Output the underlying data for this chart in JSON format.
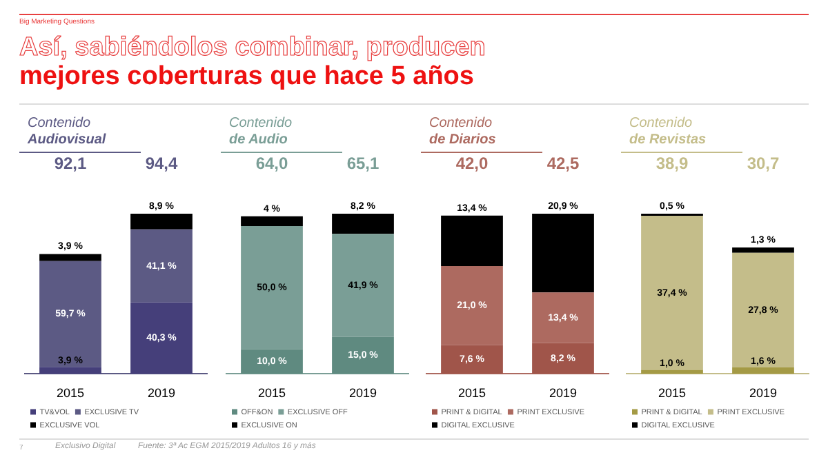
{
  "chart_data": [
    {
      "type": "bar",
      "title": "Contenido\nAudiovisual",
      "categories": [
        "2015",
        "2019"
      ],
      "stacked": true,
      "legend": "bottom",
      "annotations": [
        "Big Marketing Questions",
        "Así, sabiéndolos combinar, producen",
        "mejores coberturas que hace 5 años",
        "7",
        "Exclusivo Digital",
        "Fuente: 3ª Ac EGM 2015/2019 Adultos 16 y más",
        "92,1",
        "94,4"
      ],
      "series": [
        {
          "name": "TV&VOL",
          "color": "#453f7a",
          "values": [
            3.9,
            40.3
          ],
          "value_labels": [
            "3,9 %",
            "40,3 %"
          ]
        },
        {
          "name": "EXCLUSIVE TV",
          "color": "#5c5a84",
          "values": [
            59.7,
            41.1
          ],
          "value_labels": [
            "59,7 %",
            "41,1 %"
          ]
        },
        {
          "name": "EXCLUSIVE VOL",
          "color": "#000000",
          "values": [
            3.9,
            8.9
          ],
          "value_labels": [
            "3,9 %",
            "8,9 %"
          ]
        }
      ]
    },
    {
      "type": "bar",
      "title": "Contenido\nde Audio",
      "categories": [
        "2015",
        "2019"
      ],
      "stacked": true,
      "legend": "bottom",
      "annotations": [
        "64,0",
        "65,1"
      ],
      "series": [
        {
          "name": "OFF&ON",
          "color": "#5f8a80",
          "values": [
            10.0,
            15.0
          ],
          "value_labels": [
            "10,0 %",
            "15,0 %"
          ]
        },
        {
          "name": "EXCLUSIVE OFF",
          "color": "#7a9e96",
          "values": [
            50.0,
            41.9
          ],
          "value_labels": [
            "50,0 %",
            "41,9 %"
          ]
        },
        {
          "name": "EXCLUSIVE ON",
          "color": "#000000",
          "values": [
            4,
            8.2
          ],
          "value_labels": [
            "4 %",
            "8,2 %"
          ]
        }
      ]
    },
    {
      "type": "bar",
      "title": "Contenido\nde Diarios",
      "categories": [
        "2015",
        "2019"
      ],
      "stacked": true,
      "legend": "bottom",
      "annotations": [
        "42,0",
        "42,5"
      ],
      "series": [
        {
          "name": "PRINT & DIGITAL",
          "color": "#a0554a",
          "values": [
            7.6,
            8.2
          ],
          "value_labels": [
            "7,6 %",
            "8,2 %"
          ]
        },
        {
          "name": "PRINT EXCLUSIVE",
          "color": "#ad6a60",
          "values": [
            21.0,
            13.4
          ],
          "value_labels": [
            "21,0 %",
            "13,4 %"
          ]
        },
        {
          "name": "DIGITAL EXCLUSIVE",
          "color": "#000000",
          "values": [
            13.4,
            20.9
          ],
          "value_labels": [
            "13,4 %",
            "20,9 %"
          ]
        }
      ]
    },
    {
      "type": "bar",
      "title": "Contenido\nde Revistas",
      "categories": [
        "2015",
        "2019"
      ],
      "stacked": true,
      "legend": "bottom",
      "annotations": [
        "38,9",
        "30,7"
      ],
      "series": [
        {
          "name": "PRINT & DIGITAL",
          "color": "#a49a45",
          "values": [
            1.0,
            1.6
          ],
          "value_labels": [
            "1,0 %",
            "1,6 %"
          ]
        },
        {
          "name": "PRINT EXCLUSIVE",
          "color": "#c4bd8a",
          "values": [
            37.4,
            27.8
          ],
          "value_labels": [
            "37,4 %",
            "27,8 %"
          ]
        },
        {
          "name": "DIGITAL EXCLUSIVE",
          "color": "#000000",
          "values": [
            0.5,
            1.3
          ],
          "value_labels": [
            "0,5 %",
            "1,3 %"
          ]
        }
      ]
    }
  ]
}
